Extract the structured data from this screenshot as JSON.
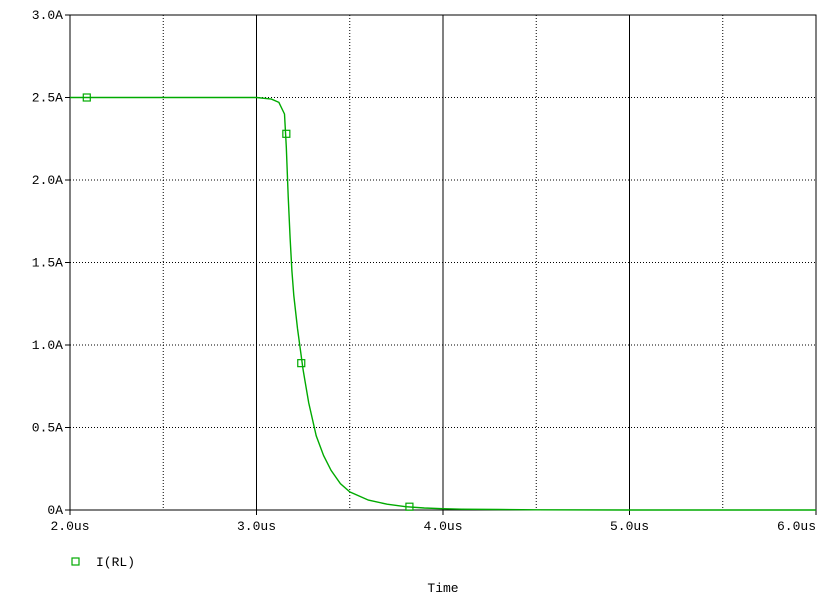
{
  "chart_data": {
    "type": "line",
    "xlabel": "Time",
    "ylabel": "",
    "xlim": [
      2.0,
      6.0
    ],
    "ylim": [
      0,
      3.0
    ],
    "x_unit": "us",
    "y_unit": "A",
    "x_ticks": [
      {
        "value": 2.0,
        "label": "2.0us"
      },
      {
        "value": 3.0,
        "label": "3.0us"
      },
      {
        "value": 4.0,
        "label": "4.0us"
      },
      {
        "value": 5.0,
        "label": "5.0us"
      },
      {
        "value": 6.0,
        "label": "6.0us"
      }
    ],
    "y_ticks": [
      {
        "value": 0,
        "label": "0A"
      },
      {
        "value": 0.5,
        "label": "0.5A"
      },
      {
        "value": 1.0,
        "label": "1.0A"
      },
      {
        "value": 1.5,
        "label": "1.5A"
      },
      {
        "value": 2.0,
        "label": "2.0A"
      },
      {
        "value": 2.5,
        "label": "2.5A"
      },
      {
        "value": 3.0,
        "label": "3.0A"
      }
    ],
    "grid": true,
    "legend_position": "bottom-left",
    "series": [
      {
        "name": "I(RL)",
        "color": "#00aa00",
        "marker": "hollow-square",
        "x": [
          2.0,
          2.5,
          3.0,
          3.08,
          3.12,
          3.15,
          3.16,
          3.17,
          3.18,
          3.19,
          3.2,
          3.22,
          3.25,
          3.28,
          3.32,
          3.36,
          3.4,
          3.45,
          3.5,
          3.6,
          3.7,
          3.8,
          3.9,
          4.0,
          4.1,
          4.3,
          4.5,
          5.0,
          6.0
        ],
        "y": [
          2.5,
          2.5,
          2.5,
          2.49,
          2.47,
          2.4,
          2.2,
          1.9,
          1.65,
          1.45,
          1.3,
          1.1,
          0.85,
          0.65,
          0.45,
          0.33,
          0.24,
          0.16,
          0.11,
          0.06,
          0.035,
          0.02,
          0.012,
          0.008,
          0.005,
          0.003,
          0.001,
          0.0,
          0.0
        ],
        "marker_points": [
          [
            2.09,
            2.5
          ],
          [
            3.16,
            2.28
          ],
          [
            3.24,
            0.89
          ],
          [
            3.82,
            0.02
          ]
        ]
      }
    ]
  },
  "colors": {
    "series": "#00aa00",
    "axis": "#000000",
    "grid": "#000000"
  }
}
